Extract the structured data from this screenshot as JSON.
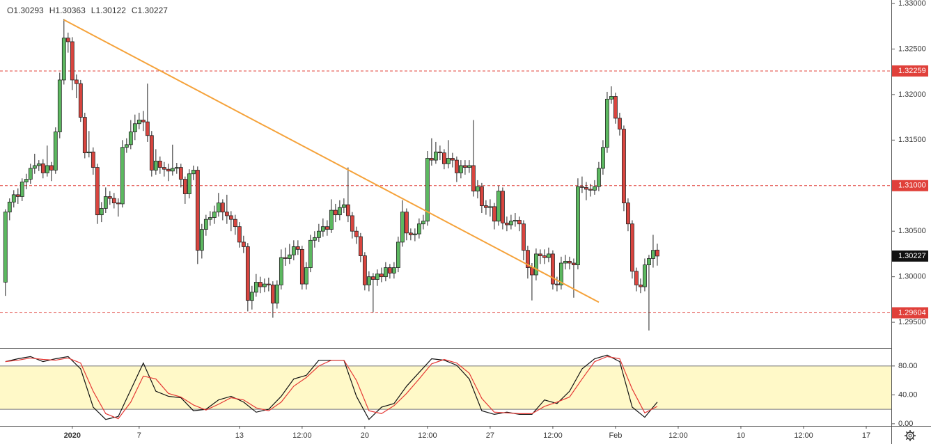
{
  "chart_data": {
    "type": "candlestick",
    "ohlc_labels": [
      "O",
      "H",
      "L",
      "C"
    ],
    "up_color": "#5cb860",
    "down_color": "#d9453f",
    "candles": [
      [
        1.2994,
        1.3074,
        1.2979,
        1.3071
      ],
      [
        1.3071,
        1.3086,
        1.3062,
        1.3082
      ],
      [
        1.3082,
        1.3095,
        1.3076,
        1.309
      ],
      [
        1.309,
        1.3097,
        1.308,
        1.3088
      ],
      [
        1.3088,
        1.3108,
        1.3083,
        1.3104
      ],
      [
        1.3104,
        1.3113,
        1.3096,
        1.3107
      ],
      [
        1.3107,
        1.3124,
        1.3102,
        1.3119
      ],
      [
        1.3119,
        1.3135,
        1.3113,
        1.3122
      ],
      [
        1.3122,
        1.3128,
        1.3116,
        1.3124
      ],
      [
        1.3124,
        1.3129,
        1.3108,
        1.3114
      ],
      [
        1.3114,
        1.3144,
        1.311,
        1.3122
      ],
      [
        1.3122,
        1.3126,
        1.3105,
        1.3117
      ],
      [
        1.3117,
        1.3164,
        1.3113,
        1.3159
      ],
      [
        1.3159,
        1.3224,
        1.3152,
        1.3216
      ],
      [
        1.3216,
        1.3283,
        1.3211,
        1.3262
      ],
      [
        1.3262,
        1.3268,
        1.3246,
        1.3258
      ],
      [
        1.3258,
        1.3263,
        1.3205,
        1.3216
      ],
      [
        1.3216,
        1.3222,
        1.3196,
        1.3212
      ],
      [
        1.3212,
        1.3216,
        1.317,
        1.3175
      ],
      [
        1.3175,
        1.318,
        1.313,
        1.3136
      ],
      [
        1.3136,
        1.316,
        1.3131,
        1.3137
      ],
      [
        1.3137,
        1.3142,
        1.3112,
        1.312
      ],
      [
        1.312,
        1.3124,
        1.3058,
        1.3068
      ],
      [
        1.3068,
        1.3082,
        1.306,
        1.3075
      ],
      [
        1.3075,
        1.3098,
        1.307,
        1.3088
      ],
      [
        1.3088,
        1.3094,
        1.3079,
        1.3086
      ],
      [
        1.3086,
        1.3092,
        1.3075,
        1.3081
      ],
      [
        1.3081,
        1.3086,
        1.3066,
        1.308
      ],
      [
        1.308,
        1.315,
        1.3076,
        1.3142
      ],
      [
        1.3142,
        1.3152,
        1.3136,
        1.3145
      ],
      [
        1.3145,
        1.3172,
        1.314,
        1.3159
      ],
      [
        1.3159,
        1.3178,
        1.315,
        1.3168
      ],
      [
        1.3168,
        1.318,
        1.3162,
        1.3172
      ],
      [
        1.3172,
        1.3182,
        1.316,
        1.317
      ],
      [
        1.317,
        1.3212,
        1.3148,
        1.3155
      ],
      [
        1.3155,
        1.316,
        1.311,
        1.3117
      ],
      [
        1.3117,
        1.314,
        1.3112,
        1.3127
      ],
      [
        1.3127,
        1.3132,
        1.3113,
        1.312
      ],
      [
        1.312,
        1.3126,
        1.311,
        1.3118
      ],
      [
        1.3118,
        1.3124,
        1.3105,
        1.3116
      ],
      [
        1.3116,
        1.3145,
        1.3111,
        1.3119
      ],
      [
        1.3119,
        1.3125,
        1.3113,
        1.312
      ],
      [
        1.312,
        1.3124,
        1.3098,
        1.3107
      ],
      [
        1.3107,
        1.311,
        1.308,
        1.3091
      ],
      [
        1.3091,
        1.3118,
        1.3086,
        1.3113
      ],
      [
        1.3113,
        1.3122,
        1.3106,
        1.3117
      ],
      [
        1.3117,
        1.3121,
        1.3014,
        1.3029
      ],
      [
        1.3029,
        1.3058,
        1.302,
        1.3052
      ],
      [
        1.3052,
        1.3068,
        1.3045,
        1.3063
      ],
      [
        1.3063,
        1.3072,
        1.3056,
        1.3065
      ],
      [
        1.3065,
        1.3078,
        1.3058,
        1.3071
      ],
      [
        1.3071,
        1.3092,
        1.3066,
        1.3081
      ],
      [
        1.3081,
        1.3085,
        1.3062,
        1.3071
      ],
      [
        1.3071,
        1.309,
        1.3058,
        1.3067
      ],
      [
        1.3067,
        1.3072,
        1.305,
        1.3063
      ],
      [
        1.3063,
        1.3068,
        1.3046,
        1.3055
      ],
      [
        1.3055,
        1.306,
        1.3032,
        1.3038
      ],
      [
        1.3038,
        1.3045,
        1.3026,
        1.3033
      ],
      [
        1.3033,
        1.3037,
        1.2962,
        1.2974
      ],
      [
        1.2974,
        1.299,
        1.2964,
        1.2983
      ],
      [
        1.2983,
        1.3003,
        1.2978,
        1.2994
      ],
      [
        1.2994,
        1.3,
        1.2982,
        1.2989
      ],
      [
        1.2989,
        1.2998,
        1.2983,
        1.2992
      ],
      [
        1.2992,
        1.2999,
        1.2984,
        1.2991
      ],
      [
        1.2991,
        1.2995,
        1.2955,
        1.2971
      ],
      [
        1.2971,
        1.2996,
        1.2965,
        1.2991
      ],
      [
        1.2991,
        1.303,
        1.2986,
        1.3021
      ],
      [
        1.3021,
        1.3032,
        1.3012,
        1.302
      ],
      [
        1.302,
        1.3036,
        1.3014,
        1.3024
      ],
      [
        1.3024,
        1.304,
        1.3018,
        1.3033
      ],
      [
        1.3033,
        1.304,
        1.3024,
        1.303
      ],
      [
        1.303,
        1.3034,
        1.2986,
        1.2992
      ],
      [
        1.2992,
        1.3016,
        1.2986,
        1.301
      ],
      [
        1.301,
        1.3046,
        1.3005,
        1.304
      ],
      [
        1.304,
        1.305,
        1.3032,
        1.3043
      ],
      [
        1.3043,
        1.3058,
        1.3038,
        1.305
      ],
      [
        1.305,
        1.3064,
        1.3044,
        1.3055
      ],
      [
        1.3055,
        1.3062,
        1.3045,
        1.3052
      ],
      [
        1.3052,
        1.3085,
        1.3048,
        1.3073
      ],
      [
        1.3073,
        1.308,
        1.306,
        1.3068
      ],
      [
        1.3068,
        1.3084,
        1.3062,
        1.3076
      ],
      [
        1.3076,
        1.3086,
        1.307,
        1.3079
      ],
      [
        1.3079,
        1.312,
        1.306,
        1.3067
      ],
      [
        1.3067,
        1.3071,
        1.3042,
        1.305
      ],
      [
        1.305,
        1.3055,
        1.3036,
        1.3044
      ],
      [
        1.3044,
        1.3048,
        1.3016,
        1.3023
      ],
      [
        1.3023,
        1.3027,
        1.2985,
        1.2991
      ],
      [
        1.2991,
        1.3006,
        1.2984,
        1.3
      ],
      [
        1.3,
        1.3004,
        1.2961,
        1.2997
      ],
      [
        1.2997,
        1.3008,
        1.299,
        1.3003
      ],
      [
        1.3003,
        1.301,
        1.2994,
        1.3
      ],
      [
        1.3,
        1.3016,
        1.2995,
        1.301
      ],
      [
        1.301,
        1.3014,
        1.2998,
        1.3004
      ],
      [
        1.3004,
        1.3016,
        1.2998,
        1.301
      ],
      [
        1.301,
        1.3044,
        1.3005,
        1.3038
      ],
      [
        1.3038,
        1.3084,
        1.3033,
        1.3071
      ],
      [
        1.3071,
        1.3075,
        1.304,
        1.3048
      ],
      [
        1.3048,
        1.3053,
        1.304,
        1.3046
      ],
      [
        1.3046,
        1.3053,
        1.3039,
        1.3047
      ],
      [
        1.3047,
        1.3064,
        1.3042,
        1.3058
      ],
      [
        1.3058,
        1.3068,
        1.3052,
        1.3061
      ],
      [
        1.3061,
        1.3138,
        1.3056,
        1.313
      ],
      [
        1.313,
        1.3152,
        1.3122,
        1.3128
      ],
      [
        1.3128,
        1.3148,
        1.3124,
        1.3137
      ],
      [
        1.3137,
        1.3144,
        1.3128,
        1.3136
      ],
      [
        1.3136,
        1.314,
        1.3118,
        1.3124
      ],
      [
        1.3124,
        1.315,
        1.3119,
        1.313
      ],
      [
        1.313,
        1.3136,
        1.312,
        1.3128
      ],
      [
        1.3128,
        1.3132,
        1.3104,
        1.3114
      ],
      [
        1.3114,
        1.3128,
        1.3108,
        1.3122
      ],
      [
        1.3122,
        1.3128,
        1.3112,
        1.312
      ],
      [
        1.312,
        1.3128,
        1.3114,
        1.3122
      ],
      [
        1.3122,
        1.3172,
        1.3088,
        1.3094
      ],
      [
        1.3094,
        1.3106,
        1.3086,
        1.3099
      ],
      [
        1.3099,
        1.3103,
        1.307,
        1.3078
      ],
      [
        1.3078,
        1.3084,
        1.3068,
        1.3076
      ],
      [
        1.3076,
        1.3085,
        1.3066,
        1.3077
      ],
      [
        1.3077,
        1.3081,
        1.3052,
        1.3061
      ],
      [
        1.3061,
        1.31,
        1.3056,
        1.3094
      ],
      [
        1.3094,
        1.3098,
        1.3052,
        1.3059
      ],
      [
        1.3059,
        1.3066,
        1.305,
        1.3057
      ],
      [
        1.3057,
        1.3068,
        1.3052,
        1.3061
      ],
      [
        1.3061,
        1.307,
        1.3055,
        1.3062
      ],
      [
        1.3062,
        1.3066,
        1.305,
        1.3058
      ],
      [
        1.3058,
        1.3062,
        1.3018,
        1.3029
      ],
      [
        1.3029,
        1.3034,
        1.2998,
        1.301
      ],
      [
        1.301,
        1.3015,
        1.2974,
        1.3002
      ],
      [
        1.3002,
        1.3031,
        1.2996,
        1.3025
      ],
      [
        1.3025,
        1.303,
        1.3014,
        1.3023
      ],
      [
        1.3023,
        1.303,
        1.3014,
        1.3021
      ],
      [
        1.3021,
        1.3032,
        1.3016,
        1.3025
      ],
      [
        1.3025,
        1.3029,
        1.2986,
        1.2992
      ],
      [
        1.2992,
        1.3,
        1.2984,
        1.2991
      ],
      [
        1.2991,
        1.3022,
        1.2986,
        1.3015
      ],
      [
        1.3015,
        1.3024,
        1.3008,
        1.3017
      ],
      [
        1.3017,
        1.3022,
        1.3008,
        1.3015
      ],
      [
        1.3015,
        1.302,
        1.2977,
        1.3013
      ],
      [
        1.3013,
        1.3108,
        1.3008,
        1.3099
      ],
      [
        1.3099,
        1.311,
        1.3092,
        1.3098
      ],
      [
        1.3098,
        1.3104,
        1.3084,
        1.3096
      ],
      [
        1.3096,
        1.3102,
        1.3088,
        1.3095
      ],
      [
        1.3095,
        1.3106,
        1.309,
        1.3099
      ],
      [
        1.3099,
        1.3126,
        1.3094,
        1.3119
      ],
      [
        1.3119,
        1.315,
        1.3112,
        1.3142
      ],
      [
        1.3142,
        1.3203,
        1.3136,
        1.3195
      ],
      [
        1.3195,
        1.3209,
        1.319,
        1.3198
      ],
      [
        1.3198,
        1.3202,
        1.3168,
        1.3174
      ],
      [
        1.3174,
        1.318,
        1.3155,
        1.3162
      ],
      [
        1.3162,
        1.3166,
        1.3072,
        1.3081
      ],
      [
        1.3081,
        1.3086,
        1.305,
        1.3058
      ],
      [
        1.3058,
        1.3062,
        1.2998,
        1.3006
      ],
      [
        1.3006,
        1.301,
        1.2984,
        1.2991
      ],
      [
        1.2991,
        1.2998,
        1.2982,
        1.2989
      ],
      [
        1.2989,
        1.302,
        1.2984,
        1.3013
      ],
      [
        1.3013,
        1.3024,
        1.2941,
        1.302
      ],
      [
        1.302,
        1.3046,
        1.301,
        1.3029
      ],
      [
        1.30293,
        1.30363,
        1.30122,
        1.30227
      ]
    ],
    "xlim": [
      -1.3,
      212
    ],
    "xticks": [
      {
        "value": 16,
        "label": "2020"
      },
      {
        "value": 32,
        "label": "7"
      },
      {
        "value": 56,
        "label": "13"
      },
      {
        "value": 71,
        "label": "12:00"
      },
      {
        "value": 86,
        "label": "20"
      },
      {
        "value": 101,
        "label": "12:00"
      },
      {
        "value": 116,
        "label": "27"
      },
      {
        "value": 131,
        "label": "12:00"
      },
      {
        "value": 146,
        "label": "Feb"
      },
      {
        "value": 161,
        "label": "12:00"
      },
      {
        "value": 176,
        "label": "10"
      },
      {
        "value": 191,
        "label": "12:00"
      },
      {
        "value": 206,
        "label": "17"
      }
    ],
    "ylim": [
      1.29218,
      1.33038
    ],
    "yticks": [
      {
        "value": 1.33,
        "label": "1.33000"
      },
      {
        "value": 1.325,
        "label": "1.32500"
      },
      {
        "value": 1.32,
        "label": "1.32000"
      },
      {
        "value": 1.315,
        "label": "1.31500"
      },
      {
        "value": 1.305,
        "label": "1.30500"
      },
      {
        "value": 1.3,
        "label": "1.30000"
      },
      {
        "value": 1.295,
        "label": "1.29500"
      }
    ],
    "hlines": [
      {
        "value": 1.32259
      },
      {
        "value": 1.31,
        "label": "1.31000"
      },
      {
        "value": 1.29604
      }
    ],
    "hline_color": "#e0403a",
    "trendline": {
      "points": [
        [
          14,
          1.3282
        ],
        [
          142,
          1.2972
        ]
      ],
      "color": "#f5a23a"
    },
    "oscillator": {
      "ylim": [
        -3,
        103
      ],
      "yticks": [
        {
          "value": 0,
          "label": "0.00"
        },
        {
          "value": 40,
          "label": "40.00"
        },
        {
          "value": 80,
          "label": "80.00"
        }
      ],
      "band": [
        20,
        80
      ],
      "band_color": "#fff9c8",
      "x": [
        0,
        3,
        6,
        9,
        12,
        15,
        18,
        21,
        24,
        27,
        30,
        33,
        36,
        39,
        42,
        45,
        48,
        51,
        54,
        57,
        60,
        63,
        66,
        69,
        72,
        75,
        78,
        81,
        84,
        87,
        90,
        93,
        96,
        99,
        102,
        105,
        108,
        111,
        114,
        117,
        120,
        123,
        126,
        129,
        132,
        135,
        138,
        141,
        144,
        147,
        150,
        153,
        156
      ],
      "series": [
        {
          "color": "#111111",
          "values": [
            86,
            90,
            93,
            86,
            90,
            93,
            76,
            23,
            6,
            10,
            47,
            84,
            45,
            38,
            36,
            18,
            20,
            33,
            38,
            30,
            16,
            20,
            38,
            62,
            67,
            88,
            88,
            88,
            38,
            6,
            23,
            28,
            52,
            71,
            90,
            88,
            81,
            62,
            18,
            13,
            16,
            13,
            13,
            33,
            28,
            45,
            76,
            90,
            95,
            86,
            23,
            9,
            30
          ]
        },
        {
          "color": "#e53935",
          "values": [
            86,
            88,
            91,
            89,
            88,
            91,
            84,
            45,
            14,
            7,
            30,
            66,
            62,
            42,
            37,
            26,
            19,
            27,
            36,
            33,
            22,
            18,
            30,
            52,
            64,
            80,
            88,
            88,
            60,
            18,
            14,
            25,
            42,
            62,
            83,
            89,
            84,
            70,
            35,
            16,
            15,
            14,
            14,
            24,
            30,
            37,
            62,
            86,
            93,
            90,
            48,
            15,
            24
          ]
        }
      ]
    }
  }
}
